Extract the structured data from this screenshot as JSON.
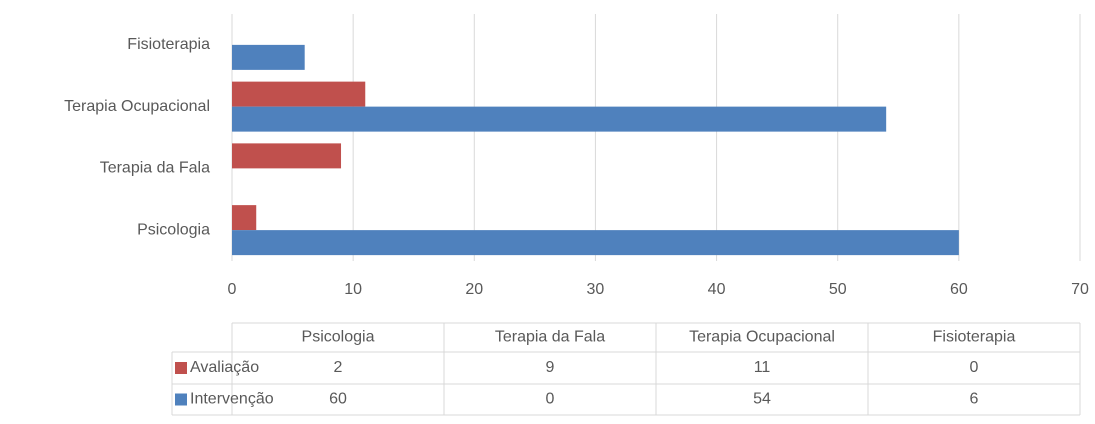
{
  "chart_data": {
    "type": "bar",
    "orientation": "horizontal",
    "categories": [
      "Psicologia",
      "Terapia da Fala",
      "Terapia Ocupacional",
      "Fisioterapia"
    ],
    "series": [
      {
        "name": "Avaliação",
        "color": "#c0504d",
        "values": [
          2,
          9,
          11,
          0
        ]
      },
      {
        "name": "Intervenção",
        "color": "#4f81bd",
        "values": [
          60,
          0,
          54,
          6
        ]
      }
    ],
    "xlim": [
      0,
      70
    ],
    "xticks": [
      0,
      10,
      20,
      30,
      40,
      50,
      60,
      70
    ],
    "grid": true,
    "data_table": true
  }
}
